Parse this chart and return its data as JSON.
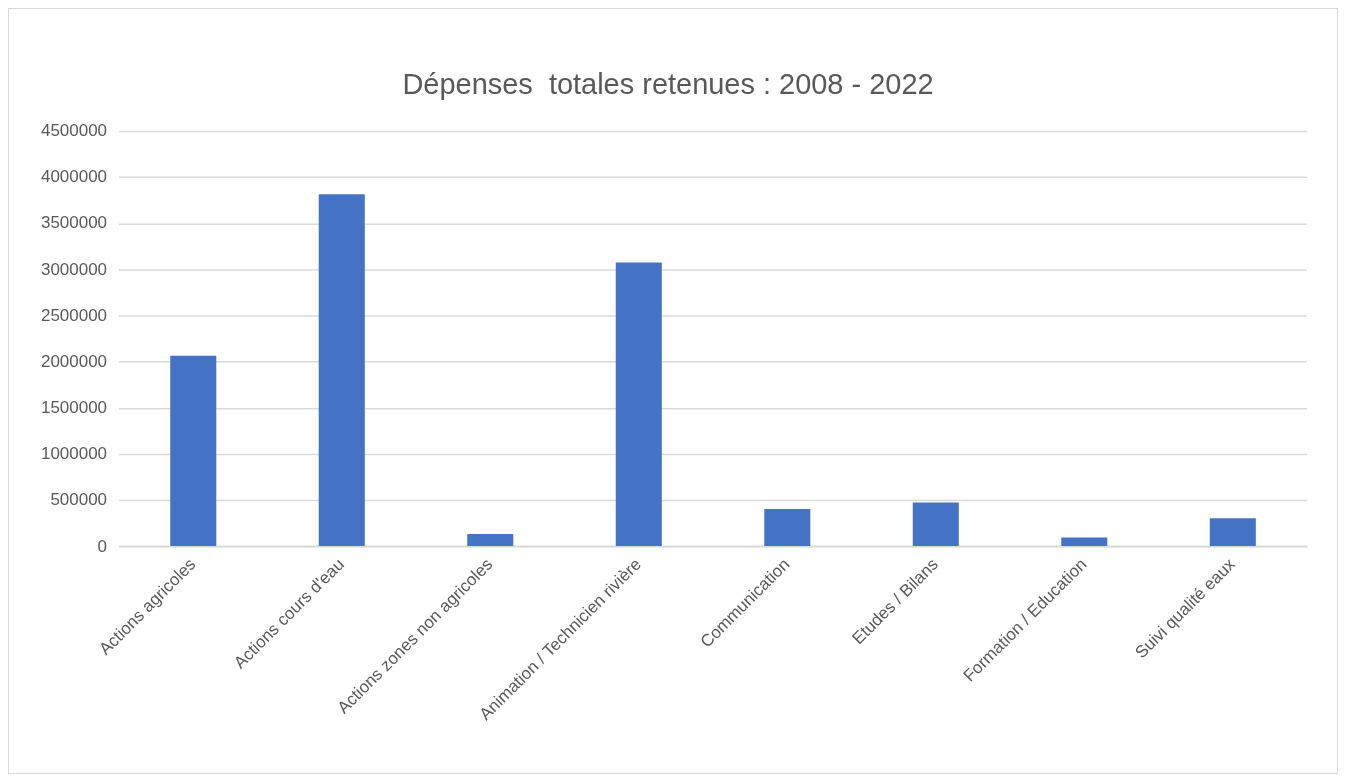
{
  "chart_data": {
    "type": "bar",
    "title": "Dépenses  totales retenues : 2008 - 2022",
    "categories": [
      "Actions agricoles",
      "Actions cours d'eau",
      "Actions zones non agricoles",
      "Animation / Technicien rivière",
      "Communication",
      "Etudes / Bilans",
      "Formation / Education",
      "Suivi qualité eaux"
    ],
    "values": [
      2070000,
      3820000,
      140000,
      3080000,
      410000,
      480000,
      100000,
      310000
    ],
    "color": "#4472c4",
    "ylim": [
      0,
      4500000
    ],
    "yticks": [
      0,
      500000,
      1000000,
      1500000,
      2000000,
      2500000,
      3000000,
      3500000,
      4000000,
      4500000
    ],
    "grid": "y",
    "legend": false
  }
}
